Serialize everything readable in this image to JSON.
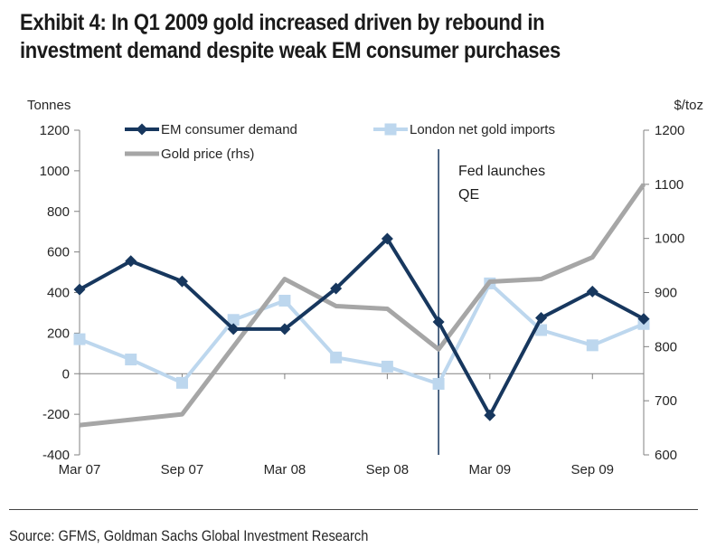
{
  "title": {
    "line1": "Exhibit 4: In Q1 2009 gold increased driven by rebound in",
    "line2": "investment demand despite weak EM consumer purchases"
  },
  "source": "Source: GFMS, Goldman Sachs Global Investment Research",
  "chart_data": {
    "type": "line",
    "x": [
      "Mar 07",
      "Jun 07",
      "Sep 07",
      "Dec 07",
      "Mar 08",
      "Jun 08",
      "Sep 08",
      "Dec 08",
      "Mar 09",
      "Jun 09",
      "Sep 09",
      "Dec 09"
    ],
    "x_tick_labels": [
      "Mar 07",
      "Sep 07",
      "Mar 08",
      "Sep 08",
      "Mar 09",
      "Sep 09"
    ],
    "left_axis": {
      "label": "Tonnes",
      "min": -400,
      "max": 1200,
      "step": 200
    },
    "right_axis": {
      "label": "$/toz",
      "min": 600,
      "max": 1200,
      "step": 100
    },
    "grid": "zero-line-only",
    "legend_position": "top",
    "series": [
      {
        "name": "EM consumer demand",
        "axis": "left",
        "marker": "diamond",
        "color": "#17375E",
        "values": [
          415,
          555,
          455,
          220,
          220,
          420,
          665,
          255,
          -205,
          275,
          405,
          270
        ]
      },
      {
        "name": "London net gold imports",
        "axis": "left",
        "marker": "square",
        "color": "#BDD7EE",
        "values": [
          170,
          70,
          -45,
          265,
          360,
          80,
          35,
          -50,
          445,
          215,
          140,
          245
        ]
      },
      {
        "name": "Gold price (rhs)",
        "axis": "right",
        "marker": "none",
        "color": "#A6A6A6",
        "values": [
          655,
          665,
          675,
          800,
          925,
          875,
          870,
          795,
          920,
          925,
          965,
          1100
        ]
      }
    ],
    "annotation": {
      "at_x": "Dec 08",
      "line_color": "#17375E",
      "text_lines": [
        "Fed launches",
        "QE"
      ]
    },
    "axis_line_color": "#808080"
  }
}
